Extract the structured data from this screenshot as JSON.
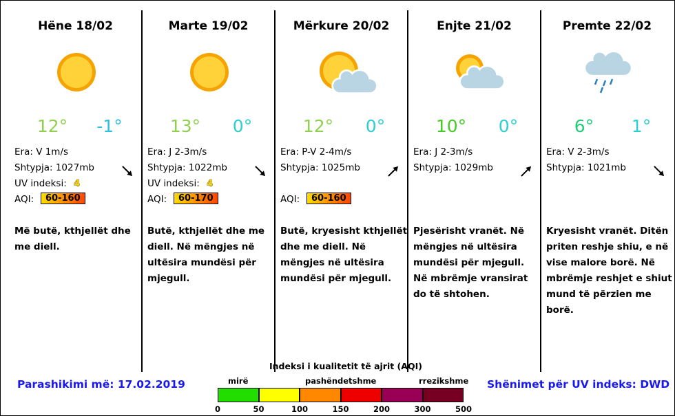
{
  "days": [
    {
      "title": "Hëne 18/02",
      "high": "12°",
      "high_color": "#8fd14f",
      "low": "-1°",
      "low_color": "#2bbfe0",
      "wind": "Era: V 1m/s",
      "pressure": "Shtypja: 1027mb",
      "uv_label": "UV indeksi:",
      "uv": "4",
      "aqi_label": "AQI:",
      "aqi": "60-160",
      "text": [
        "Më butë, kthjellët dhe",
        "me diell."
      ]
    },
    {
      "title": "Marte 19/02",
      "high": "13°",
      "high_color": "#8fd14f",
      "low": "0°",
      "low_color": "#2bcfcf",
      "wind": "Era: J 2-3m/s",
      "pressure": "Shtypja: 1022mb",
      "uv_label": "UV indeksi:",
      "uv": "4",
      "aqi_label": "AQI:",
      "aqi": "60-170",
      "text": [
        "Butë, kthjellët dhe me",
        "diell.  Në mëngjes në",
        "ultësira mundësi për",
        "mjegull."
      ]
    },
    {
      "title": "Mërkure 20/02",
      "high": "12°",
      "high_color": "#8fd14f",
      "low": "0°",
      "low_color": "#2bcfcf",
      "wind": "Era: P-V 2-4m/s",
      "pressure": "Shtypja: 1025mb",
      "aqi_label": "AQI:",
      "aqi": "60-160",
      "text": [
        "Butë, kryesisht kthjellët",
        "dhe me diell.  Në",
        "mëngjes në ultësira",
        "mundësi për mjegull."
      ]
    },
    {
      "title": "Enjte 21/02",
      "high": "10°",
      "high_color": "#44cc22",
      "low": "0°",
      "low_color": "#2bcfcf",
      "wind": "Era: J 2-3m/s",
      "pressure": "Shtypja: 1029mb",
      "text": [
        "Pjesërisht vranët.  Në",
        "mëngjes në ultësira",
        "mundësi për mjegull.",
        "Në mbrëmje vransirat",
        "do të shtohen."
      ]
    },
    {
      "title": "Premte 22/02",
      "high": "6°",
      "high_color": "#22cc77",
      "low": "1°",
      "low_color": "#2bcfcf",
      "wind": "Era: V 2-3m/s",
      "pressure": "Shtypja: 1021mb",
      "text": [
        "Kryesisht vranët.  Ditën",
        "priten reshje shiu, e në",
        "vise malore borë. Në",
        "mbrëmje reshjet e shiut",
        "mund të përzien me",
        "borë."
      ]
    }
  ],
  "footer": {
    "issued": "Parashikimi më: 17.02.2019",
    "uv_source": "Shënimet për UV indeks: DWD"
  },
  "aqi_scale": {
    "title": "Indeksi i kualitetit të ajrit (AQI)",
    "labels": [
      "mirë",
      "pashëndetshme",
      "rrezikshme"
    ],
    "ticks": [
      0,
      50,
      100,
      150,
      200,
      300,
      500
    ],
    "colors": [
      "#22dd00",
      "#ffff00",
      "#ff8800",
      "#ee0000",
      "#990055",
      "#770022"
    ]
  }
}
